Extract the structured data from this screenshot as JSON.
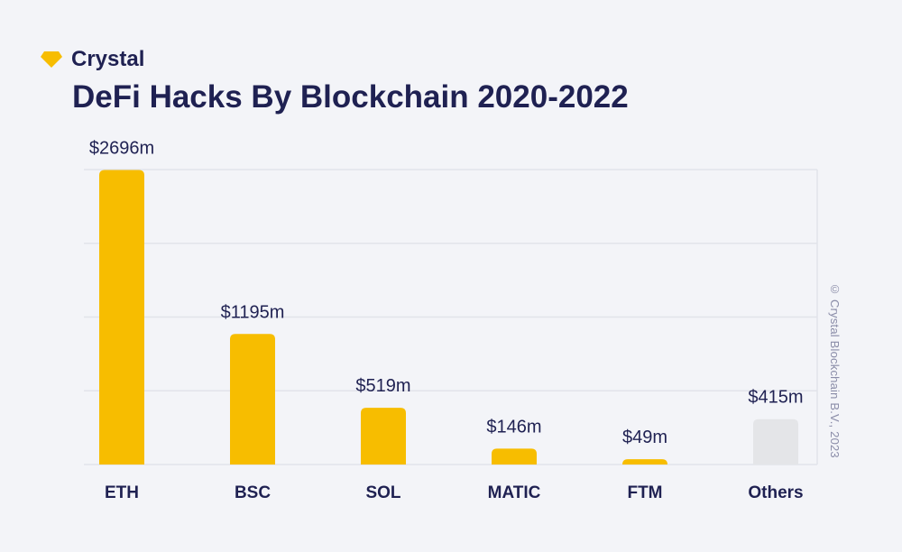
{
  "brand": {
    "name": "Crystal",
    "accent": "#f7bd00"
  },
  "copyright": "© Crystal Blockchain B.V., 2023",
  "chart_data": {
    "type": "bar",
    "title": "DeFi Hacks By Blockchain 2020-2022",
    "categories": [
      "ETH",
      "BSC",
      "SOL",
      "MATIC",
      "FTM",
      "Others"
    ],
    "values": [
      2696,
      1195,
      519,
      146,
      49,
      415
    ],
    "value_labels": [
      "$2696m",
      "$1195m",
      "$519m",
      "$146m",
      "$49m",
      "$415m"
    ],
    "colors": [
      "#f7bd00",
      "#f7bd00",
      "#f7bd00",
      "#f7bd00",
      "#f7bd00",
      "#e4e5e8"
    ],
    "ylim": [
      0,
      2700
    ],
    "grid": true,
    "xlabel": "",
    "ylabel": ""
  }
}
